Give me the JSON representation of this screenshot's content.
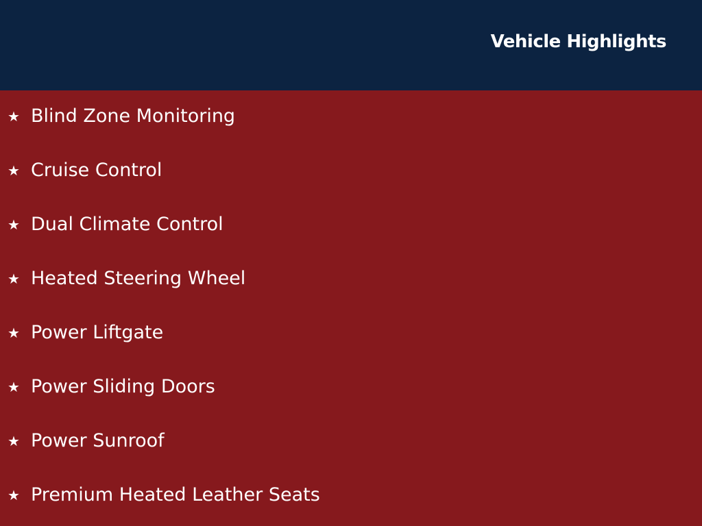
{
  "header": {
    "title": "Vehicle Highlights"
  },
  "colors": {
    "header_bg": "#0c2341",
    "list_bg": "#86191d"
  },
  "items": [
    {
      "icon": "star-icon",
      "label": "Blind Zone Monitoring"
    },
    {
      "icon": "star-icon",
      "label": "Cruise Control"
    },
    {
      "icon": "star-icon",
      "label": "Dual Climate Control"
    },
    {
      "icon": "star-icon",
      "label": "Heated Steering Wheel"
    },
    {
      "icon": "star-icon",
      "label": "Power Liftgate"
    },
    {
      "icon": "star-icon",
      "label": "Power Sliding Doors"
    },
    {
      "icon": "star-icon",
      "label": "Power Sunroof"
    },
    {
      "icon": "star-icon",
      "label": "Premium Heated Leather Seats"
    }
  ]
}
